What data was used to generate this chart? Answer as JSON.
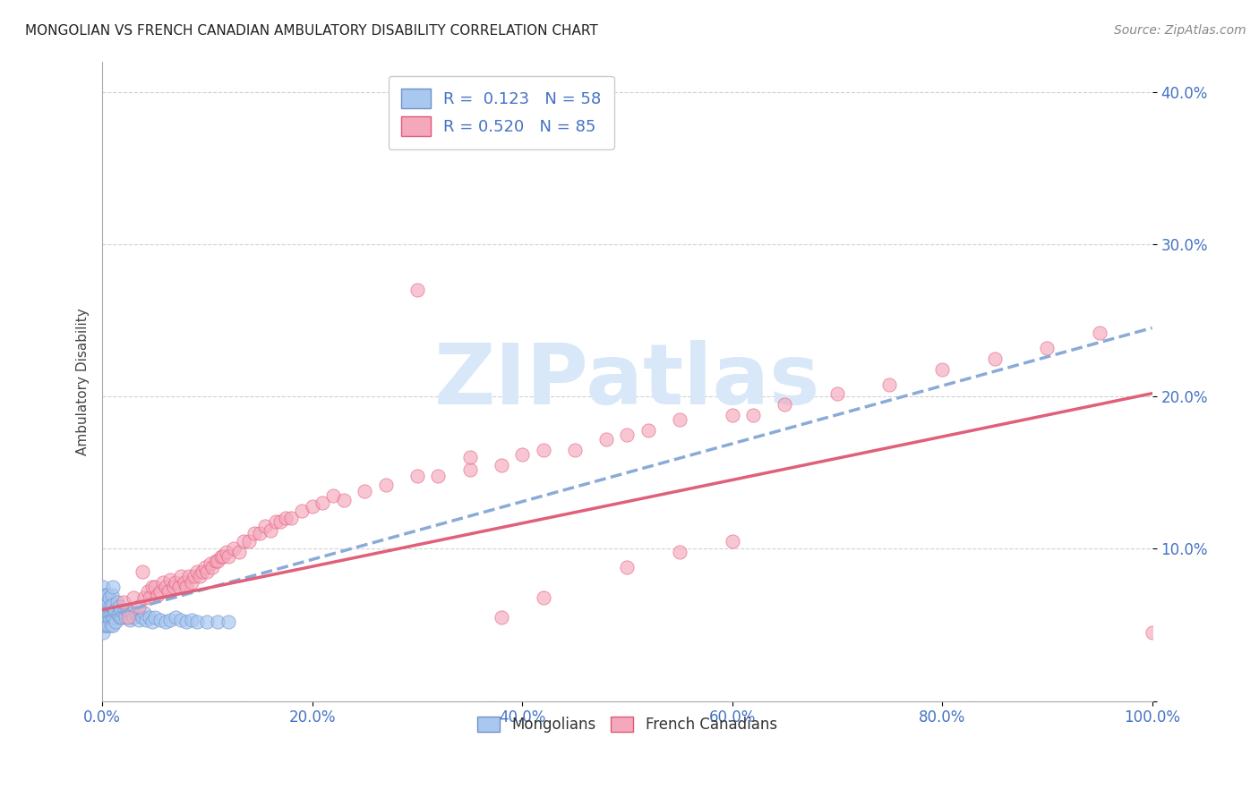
{
  "title": "MONGOLIAN VS FRENCH CANADIAN AMBULATORY DISABILITY CORRELATION CHART",
  "source": "Source: ZipAtlas.com",
  "ylabel": "Ambulatory Disability",
  "legend_label_1": "Mongolians",
  "legend_label_2": "French Canadians",
  "R1": "0.123",
  "N1": "58",
  "R2": "0.520",
  "N2": "85",
  "color_blue": "#a8c8f0",
  "color_pink": "#f5a8bc",
  "color_blue_line": "#7090c8",
  "color_pink_line": "#e05878",
  "color_trend_blue": "#8aaad8",
  "color_trend_pink": "#e0607a",
  "xlim": [
    0.0,
    1.0
  ],
  "ylim": [
    0.0,
    0.42
  ],
  "watermark_text": "ZIPatlas",
  "watermark_color": "#d8e8f8",
  "tick_color": "#4472c4",
  "background_color": "#ffffff",
  "grid_color": "#cccccc",
  "blue_scatter_x": [
    0.0,
    0.0,
    0.001,
    0.001,
    0.001,
    0.002,
    0.002,
    0.003,
    0.003,
    0.004,
    0.004,
    0.005,
    0.005,
    0.006,
    0.006,
    0.007,
    0.007,
    0.008,
    0.008,
    0.009,
    0.009,
    0.01,
    0.01,
    0.01,
    0.011,
    0.012,
    0.013,
    0.014,
    0.015,
    0.016,
    0.017,
    0.018,
    0.019,
    0.02,
    0.022,
    0.024,
    0.026,
    0.028,
    0.03,
    0.032,
    0.035,
    0.038,
    0.04,
    0.042,
    0.045,
    0.048,
    0.05,
    0.055,
    0.06,
    0.065,
    0.07,
    0.075,
    0.08,
    0.085,
    0.09,
    0.1,
    0.11,
    0.12
  ],
  "blue_scatter_y": [
    0.05,
    0.07,
    0.045,
    0.06,
    0.075,
    0.05,
    0.065,
    0.055,
    0.07,
    0.05,
    0.065,
    0.055,
    0.07,
    0.05,
    0.065,
    0.055,
    0.068,
    0.05,
    0.063,
    0.055,
    0.07,
    0.05,
    0.063,
    0.075,
    0.055,
    0.06,
    0.052,
    0.065,
    0.057,
    0.062,
    0.055,
    0.06,
    0.055,
    0.058,
    0.055,
    0.06,
    0.053,
    0.058,
    0.055,
    0.058,
    0.053,
    0.055,
    0.058,
    0.053,
    0.055,
    0.052,
    0.055,
    0.053,
    0.052,
    0.053,
    0.055,
    0.053,
    0.052,
    0.053,
    0.052,
    0.052,
    0.052,
    0.052
  ],
  "pink_scatter_x": [
    0.02,
    0.025,
    0.03,
    0.035,
    0.038,
    0.04,
    0.043,
    0.045,
    0.048,
    0.05,
    0.053,
    0.055,
    0.058,
    0.06,
    0.063,
    0.065,
    0.068,
    0.07,
    0.073,
    0.075,
    0.078,
    0.08,
    0.083,
    0.085,
    0.088,
    0.09,
    0.093,
    0.095,
    0.098,
    0.1,
    0.103,
    0.105,
    0.108,
    0.11,
    0.113,
    0.115,
    0.118,
    0.12,
    0.125,
    0.13,
    0.135,
    0.14,
    0.145,
    0.15,
    0.155,
    0.16,
    0.165,
    0.17,
    0.175,
    0.18,
    0.19,
    0.2,
    0.21,
    0.22,
    0.23,
    0.25,
    0.27,
    0.3,
    0.32,
    0.35,
    0.38,
    0.4,
    0.42,
    0.45,
    0.48,
    0.5,
    0.52,
    0.55,
    0.6,
    0.62,
    0.65,
    0.7,
    0.75,
    0.8,
    0.85,
    0.9,
    0.95,
    1.0,
    0.3,
    0.35,
    0.38,
    0.42,
    0.5,
    0.55,
    0.6
  ],
  "pink_scatter_y": [
    0.065,
    0.055,
    0.068,
    0.062,
    0.085,
    0.068,
    0.072,
    0.068,
    0.075,
    0.075,
    0.07,
    0.072,
    0.078,
    0.075,
    0.072,
    0.08,
    0.075,
    0.078,
    0.075,
    0.082,
    0.078,
    0.075,
    0.082,
    0.078,
    0.082,
    0.085,
    0.082,
    0.085,
    0.088,
    0.085,
    0.09,
    0.088,
    0.092,
    0.092,
    0.095,
    0.095,
    0.098,
    0.095,
    0.1,
    0.098,
    0.105,
    0.105,
    0.11,
    0.11,
    0.115,
    0.112,
    0.118,
    0.118,
    0.12,
    0.12,
    0.125,
    0.128,
    0.13,
    0.135,
    0.132,
    0.138,
    0.142,
    0.148,
    0.148,
    0.152,
    0.155,
    0.162,
    0.165,
    0.165,
    0.172,
    0.175,
    0.178,
    0.185,
    0.188,
    0.188,
    0.195,
    0.202,
    0.208,
    0.218,
    0.225,
    0.232,
    0.242,
    0.045,
    0.27,
    0.16,
    0.055,
    0.068,
    0.088,
    0.098,
    0.105
  ],
  "blue_trend_x": [
    0.0,
    1.0
  ],
  "blue_trend_y": [
    0.055,
    0.245
  ],
  "pink_trend_x": [
    0.0,
    1.0
  ],
  "pink_trend_y": [
    0.06,
    0.202
  ],
  "yticks": [
    0.0,
    0.1,
    0.2,
    0.3,
    0.4
  ],
  "ytick_labels": [
    "",
    "10.0%",
    "20.0%",
    "30.0%",
    "40.0%"
  ],
  "xticks": [
    0.0,
    0.2,
    0.4,
    0.6,
    0.8,
    1.0
  ],
  "xtick_labels": [
    "0.0%",
    "20.0%",
    "40.0%",
    "60.0%",
    "80.0%",
    "100.0%"
  ]
}
